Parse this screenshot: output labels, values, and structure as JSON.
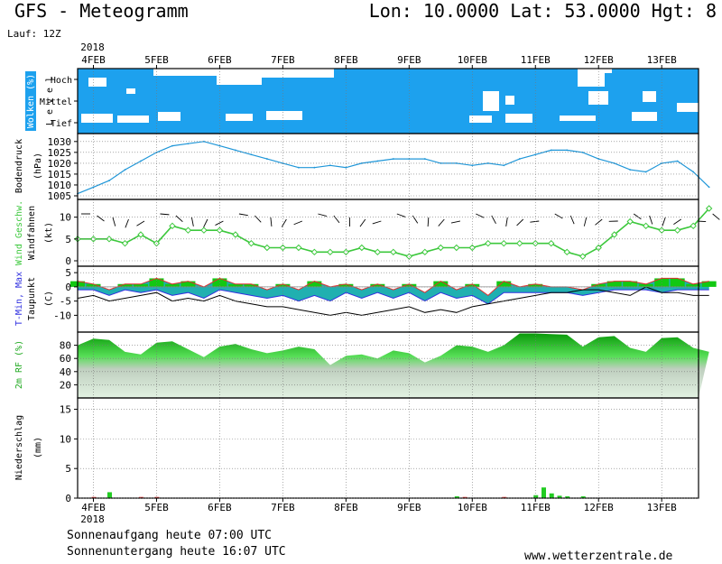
{
  "header": {
    "title": "GFS - Meteogramm",
    "coords": "Lon: 10.0000 Lat: 53.0000 Hgt: 8",
    "run": "Lauf: 12Z"
  },
  "footer": {
    "sunrise": "Sonnenaufgang heute 07:00 UTC",
    "sunset": "Sonnenuntergang heute 16:07 UTC",
    "site": "www.wetterzentrale.de"
  },
  "colors": {
    "cloud": "#1da1ee",
    "pressure": "#1e96d8",
    "wind": "#3cc83c",
    "tmin": "#3030e0",
    "tmax": "#e03030",
    "temp_fill": "#20b0b0",
    "temp_fill_pos": "#12c812",
    "rh_dark": "#0a9a0a",
    "rh_light": "#e2f2e2",
    "precip": "#22cc22",
    "precip_red": "#ee4444"
  },
  "chart_data": [
    {
      "type": "heatmap",
      "panel": "clouds",
      "ylabel": "Wolken (%)",
      "ylabel2": "L e v e l",
      "levels": [
        "Hoch",
        "Mittel",
        "Tief"
      ],
      "x_dates": [
        "4FEB",
        "5FEB",
        "6FEB",
        "7FEB",
        "8FEB",
        "9FEB",
        "10FEB",
        "11FEB",
        "12FEB",
        "13FEB"
      ],
      "year": "2018"
    },
    {
      "type": "line",
      "panel": "pressure",
      "ylabel": "Bodendruck",
      "unit": "(hPa)",
      "ylim": [
        1005,
        1032
      ],
      "yticks": [
        1005,
        1010,
        1015,
        1020,
        1025,
        1030
      ],
      "x": [
        0,
        6,
        12,
        18,
        24,
        30,
        36,
        42,
        48,
        54,
        60,
        66,
        72,
        78,
        84,
        90,
        96,
        102,
        108,
        114,
        120,
        126,
        132,
        138,
        144,
        150,
        156,
        162,
        168,
        174,
        180,
        186,
        192,
        198,
        204,
        210,
        216,
        222,
        228,
        234,
        240
      ],
      "values": [
        1006,
        1009,
        1012,
        1017,
        1021,
        1025,
        1028,
        1029,
        1030,
        1028,
        1026,
        1024,
        1022,
        1020,
        1018,
        1018,
        1019,
        1018,
        1020,
        1021,
        1022,
        1022,
        1022,
        1020,
        1020,
        1019,
        1020,
        1019,
        1022,
        1024,
        1026,
        1026,
        1025,
        1022,
        1020,
        1017,
        1016,
        1020,
        1021,
        1016,
        1009
      ]
    },
    {
      "type": "line",
      "panel": "wind",
      "ylabel": "Wind Geschw.",
      "ylabel2": "Windfahnen",
      "unit": "(kt)",
      "ylim": [
        0,
        12
      ],
      "yticks": [
        0,
        5,
        10
      ],
      "x": [
        0,
        6,
        12,
        18,
        24,
        30,
        36,
        42,
        48,
        54,
        60,
        66,
        72,
        78,
        84,
        90,
        96,
        102,
        108,
        114,
        120,
        126,
        132,
        138,
        144,
        150,
        156,
        162,
        168,
        174,
        180,
        186,
        192,
        198,
        204,
        210,
        216,
        222,
        228,
        234,
        240
      ],
      "values": [
        5,
        5,
        5,
        4,
        6,
        4,
        8,
        7,
        7,
        7,
        6,
        4,
        3,
        3,
        3,
        2,
        2,
        2,
        3,
        2,
        2,
        1,
        2,
        3,
        3,
        3,
        4,
        4,
        4,
        4,
        4,
        2,
        1,
        3,
        6,
        9,
        8,
        7,
        7,
        8,
        12
      ]
    },
    {
      "type": "line",
      "panel": "temperature",
      "ylabel": "T-Min, Max",
      "ylabel2": "Taupunkt",
      "unit": "(C)",
      "ylim": [
        -14,
        6
      ],
      "yticks": [
        -10,
        -5,
        0,
        5
      ],
      "x": [
        0,
        6,
        12,
        18,
        24,
        30,
        36,
        42,
        48,
        54,
        60,
        66,
        72,
        78,
        84,
        90,
        96,
        102,
        108,
        114,
        120,
        126,
        132,
        138,
        144,
        150,
        156,
        162,
        168,
        174,
        180,
        186,
        192,
        198,
        204,
        210,
        216,
        222,
        228,
        234,
        240
      ],
      "series": [
        {
          "name": "T-Min",
          "values": [
            -1,
            -1,
            -3,
            -1,
            -2,
            -1,
            -3,
            -2,
            -4,
            -1,
            -2,
            -3,
            -4,
            -3,
            -5,
            -3,
            -5,
            -2,
            -4,
            -2,
            -4,
            -2,
            -5,
            -2,
            -4,
            -3,
            -6,
            -2,
            -2,
            -2,
            -2,
            -2,
            -3,
            -2,
            -1,
            -1,
            -1,
            -2,
            -1,
            -1,
            -1
          ]
        },
        {
          "name": "T-Max",
          "values": [
            2,
            1,
            -1,
            1,
            1,
            3,
            1,
            2,
            0,
            3,
            1,
            1,
            -1,
            1,
            -1,
            2,
            0,
            1,
            -1,
            1,
            -1,
            1,
            -2,
            2,
            -1,
            1,
            -3,
            2,
            0,
            1,
            0,
            0,
            -1,
            1,
            2,
            2,
            1,
            3,
            3,
            1,
            2
          ]
        },
        {
          "name": "Taupunkt",
          "values": [
            -4,
            -3,
            -5,
            -4,
            -3,
            -2,
            -5,
            -4,
            -5,
            -3,
            -5,
            -6,
            -7,
            -7,
            -8,
            -9,
            -10,
            -9,
            -10,
            -9,
            -8,
            -7,
            -9,
            -8,
            -9,
            -7,
            -6,
            -5,
            -4,
            -3,
            -2,
            -2,
            -1,
            -1,
            -2,
            -3,
            0,
            -2,
            -2,
            -3,
            -3
          ]
        }
      ]
    },
    {
      "type": "area",
      "panel": "humidity",
      "ylabel": "2m RF (%)",
      "ylim": [
        0,
        100
      ],
      "yticks": [
        20,
        40,
        60,
        80
      ],
      "x": [
        0,
        6,
        12,
        18,
        24,
        30,
        36,
        42,
        48,
        54,
        60,
        66,
        72,
        78,
        84,
        90,
        96,
        102,
        108,
        114,
        120,
        126,
        132,
        138,
        144,
        150,
        156,
        162,
        168,
        174,
        180,
        186,
        192,
        198,
        204,
        210,
        216,
        222,
        228,
        234,
        240
      ],
      "values": [
        80,
        90,
        88,
        70,
        66,
        84,
        86,
        74,
        62,
        78,
        82,
        74,
        68,
        72,
        78,
        74,
        50,
        64,
        66,
        60,
        72,
        68,
        54,
        64,
        80,
        78,
        70,
        80,
        98,
        98,
        97,
        96,
        78,
        92,
        94,
        76,
        70,
        91,
        92,
        76,
        70
      ]
    },
    {
      "type": "bar",
      "panel": "precipitation",
      "ylabel": "Niederschlag",
      "unit": "(mm)",
      "ylim": [
        0,
        16
      ],
      "yticks": [
        0,
        5,
        10,
        15
      ],
      "x_dates": [
        "4FEB",
        "5FEB",
        "6FEB",
        "7FEB",
        "8FEB",
        "9FEB",
        "10FEB",
        "11FEB",
        "12FEB",
        "13FEB"
      ],
      "year": "2018",
      "x": [
        6,
        12,
        24,
        30,
        144,
        147,
        162,
        174,
        177,
        180,
        183,
        186,
        192
      ],
      "values": [
        0.2,
        1.0,
        0.2,
        0.2,
        0.3,
        0.2,
        0.2,
        0.5,
        1.8,
        0.8,
        0.4,
        0.3,
        0.3
      ]
    }
  ]
}
